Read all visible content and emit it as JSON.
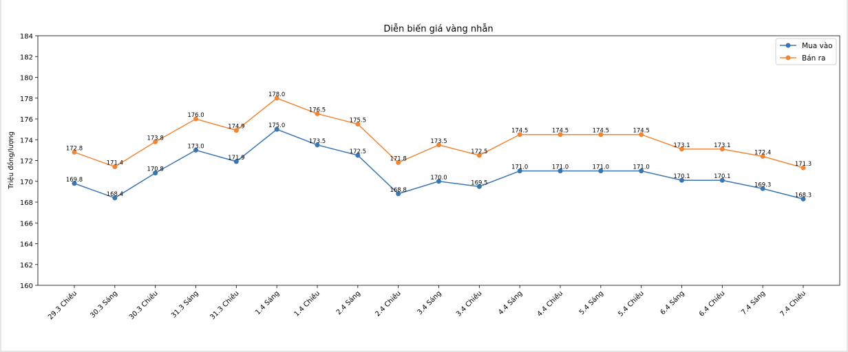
{
  "chart_data": {
    "type": "line",
    "title": "Diễn biến giá vàng nhẫn",
    "xlabel": "",
    "ylabel": "Triệu đồng/lượng",
    "ylim": [
      160,
      184
    ],
    "yticks": [
      160,
      162,
      164,
      166,
      168,
      170,
      172,
      174,
      176,
      178,
      180,
      182,
      184
    ],
    "grid": false,
    "legend_position": "top-right",
    "categories": [
      "29.3 Chiều",
      "30.3 Sáng",
      "30.3 Chiều",
      "31.3 Sáng",
      "31.3 Chiều",
      "1.4 Sáng",
      "1.4 Chiều",
      "2.4 Sáng",
      "2.4 Chiều",
      "3.4 Sáng",
      "3.4 Chiều",
      "4.4 Sáng",
      "4.4 Chiều",
      "5.4 Sáng",
      "5.4 Chiều",
      "6.4 Sáng",
      "6.4 Chiều",
      "7.4 Sáng",
      "7.4 Chiều"
    ],
    "series": [
      {
        "name": "Mua vào",
        "color": "#3a75af",
        "marker": "circle",
        "values": [
          169.8,
          168.4,
          170.8,
          173.0,
          171.9,
          175.0,
          173.5,
          172.5,
          168.8,
          170.0,
          169.5,
          171.0,
          171.0,
          171.0,
          171.0,
          170.1,
          170.1,
          169.3,
          168.3
        ]
      },
      {
        "name": "Bán ra",
        "color": "#ef8636",
        "marker": "circle",
        "values": [
          172.8,
          171.4,
          173.8,
          176.0,
          174.9,
          178.0,
          176.5,
          175.5,
          171.8,
          173.5,
          172.5,
          174.5,
          174.5,
          174.5,
          174.5,
          173.1,
          173.1,
          172.4,
          171.3
        ]
      }
    ]
  }
}
